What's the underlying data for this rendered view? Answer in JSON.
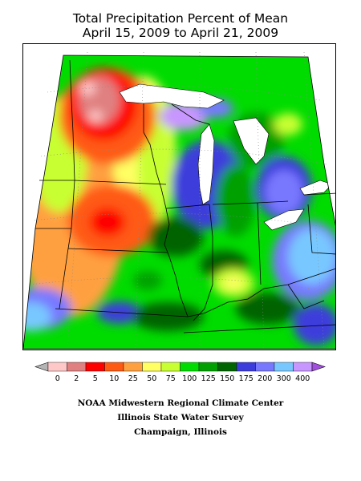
{
  "title_line1": "Total Precipitation Percent of Mean",
  "title_line2": "April 15, 2009 to April 21, 2009",
  "credits": [
    "NOAA Midwestern Regional Climate Center",
    "Illinois State Water Survey",
    "Champaign, Illinois"
  ],
  "legend": {
    "tick_labels": [
      "0",
      "2",
      "5",
      "10",
      "25",
      "50",
      "75",
      "100",
      "125",
      "150",
      "175",
      "200",
      "300",
      "400"
    ],
    "bins": [
      {
        "range": "<0",
        "color": "#b4b4b4"
      },
      {
        "range": "0-2",
        "color": "#ffc8c8"
      },
      {
        "range": "2-5",
        "color": "#e08080"
      },
      {
        "range": "5-10",
        "color": "#ff0000"
      },
      {
        "range": "10-25",
        "color": "#ff5a14"
      },
      {
        "range": "25-50",
        "color": "#ffa040"
      },
      {
        "range": "50-75",
        "color": "#ffff64"
      },
      {
        "range": "75-100",
        "color": "#c8ff32"
      },
      {
        "range": "100-125",
        "color": "#00dc00"
      },
      {
        "range": "125-150",
        "color": "#00a000"
      },
      {
        "range": "150-175",
        "color": "#006400"
      },
      {
        "range": "175-200",
        "color": "#3c3cdc"
      },
      {
        "range": "200-300",
        "color": "#7878ff"
      },
      {
        "range": "300-400",
        "color": "#78c8ff"
      },
      {
        "range": "400+",
        "color": "#c896ff"
      },
      {
        "range": ">400",
        "color": "#a050dc"
      }
    ]
  },
  "map_colors": {
    "lake_fill": "#ffffff",
    "boundary_line": "#000000",
    "graticule": "#888888"
  }
}
